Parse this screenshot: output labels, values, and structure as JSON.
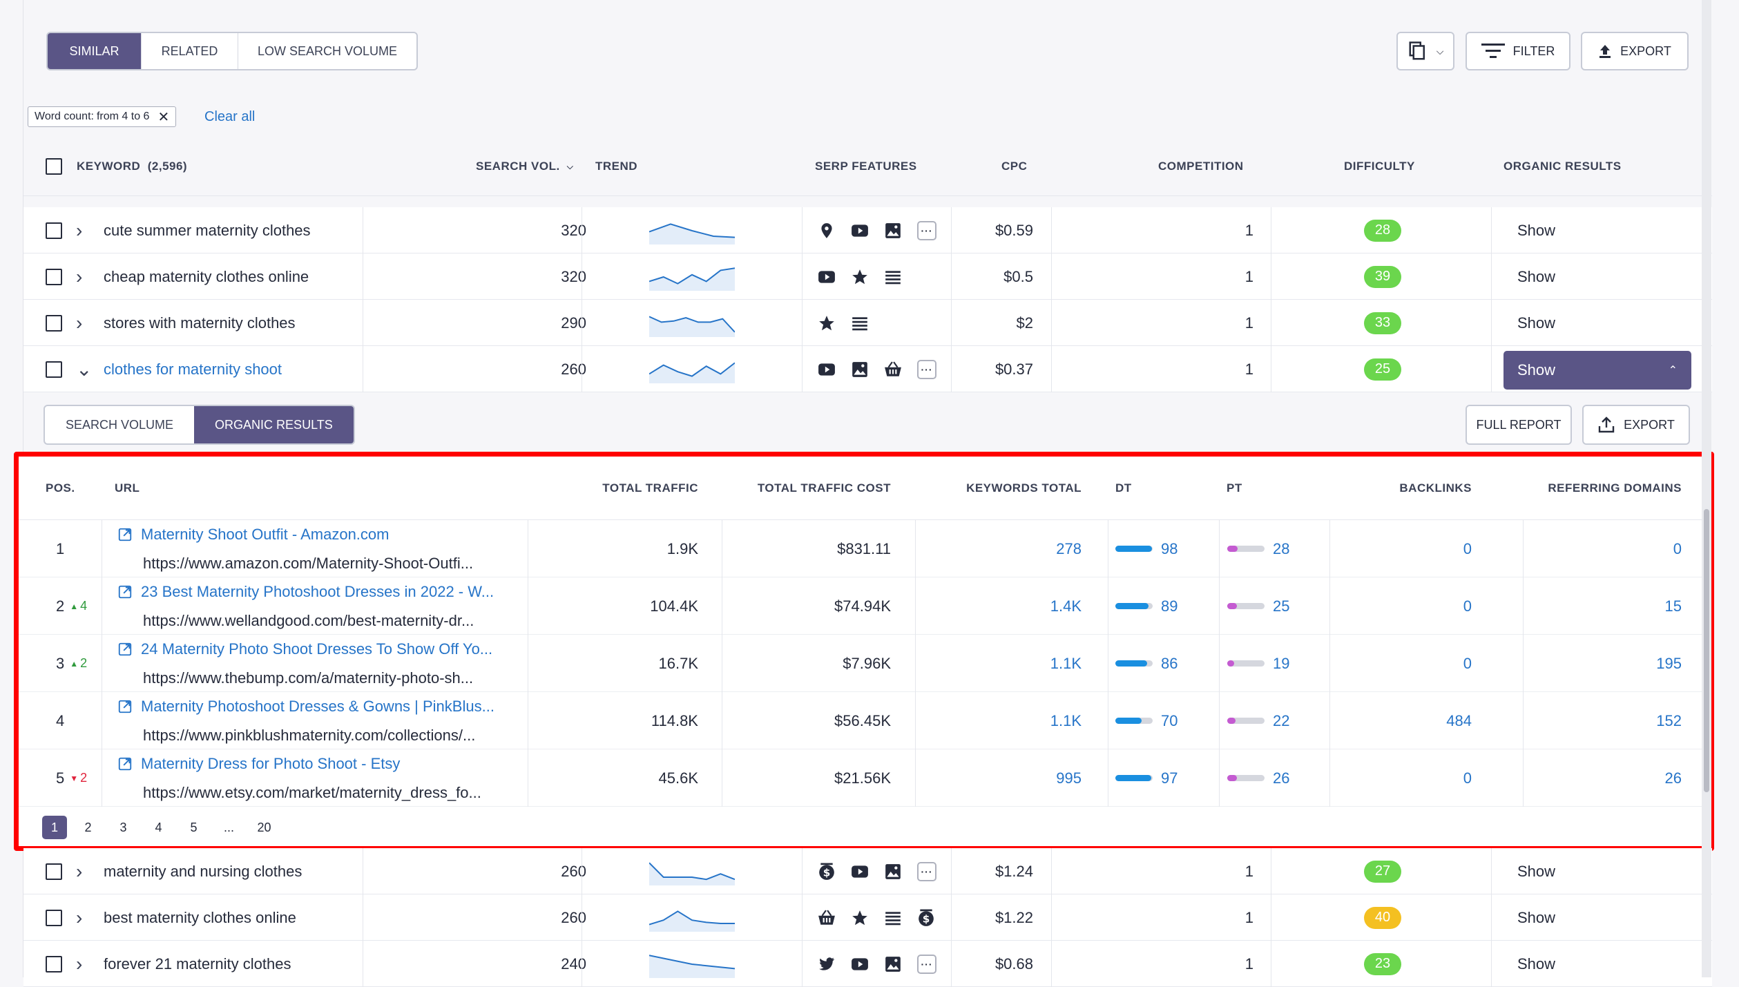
{
  "tabs": {
    "similar": "SIMILAR",
    "related": "RELATED",
    "low_volume": "LOW SEARCH VOLUME"
  },
  "toolbar": {
    "filter": "FILTER",
    "export": "EXPORT"
  },
  "filter_chip": {
    "label": "Word count:",
    "value": "from 4 to 6"
  },
  "clear_all": "Clear all",
  "columns": {
    "keyword": "KEYWORD",
    "keyword_count": "(2,596)",
    "search_vol": "SEARCH VOL.",
    "trend": "TREND",
    "serp": "SERP FEATURES",
    "cpc": "CPC",
    "competition": "COMPETITION",
    "difficulty": "DIFFICULTY",
    "organic": "ORGANIC RESULTS"
  },
  "rows_top": [
    {
      "keyword": "cute summer maternity clothes",
      "volume": "320",
      "cpc": "$0.59",
      "competition": "1",
      "difficulty": "28",
      "difficulty_color": "#6bd64d",
      "action": "Show",
      "serp": [
        "location-icon",
        "youtube-icon",
        "image-icon",
        "more-icon"
      ],
      "trend": [
        0.55,
        0.2,
        0.5,
        0.75,
        0.8
      ]
    },
    {
      "keyword": "cheap maternity clothes online",
      "volume": "320",
      "cpc": "$0.5",
      "competition": "1",
      "difficulty": "39",
      "difficulty_color": "#6bd64d",
      "action": "Show",
      "serp": [
        "youtube-icon",
        "star-icon",
        "list-icon"
      ],
      "trend": [
        0.7,
        0.5,
        0.8,
        0.4,
        0.7,
        0.2,
        0.1
      ]
    },
    {
      "keyword": "stores with maternity clothes",
      "volume": "290",
      "cpc": "$2",
      "competition": "1",
      "difficulty": "33",
      "difficulty_color": "#6bd64d",
      "action": "Show",
      "serp": [
        "star-icon",
        "list-icon"
      ],
      "trend": [
        0.2,
        0.45,
        0.4,
        0.25,
        0.45,
        0.45,
        0.3,
        0.9
      ]
    },
    {
      "keyword": "clothes for maternity shoot",
      "volume": "260",
      "cpc": "$0.37",
      "competition": "1",
      "difficulty": "25",
      "difficulty_color": "#6bd64d",
      "action": "Show",
      "serp": [
        "youtube-icon",
        "image-icon",
        "basket-icon",
        "more-icon"
      ],
      "trend": [
        0.7,
        0.3,
        0.6,
        0.8,
        0.35,
        0.7,
        0.2
      ],
      "expanded": true
    }
  ],
  "subtabs": {
    "search_volume": "SEARCH VOLUME",
    "organic_results": "ORGANIC RESULTS",
    "full_report": "FULL REPORT",
    "export": "EXPORT"
  },
  "organic_columns": {
    "pos": "POS.",
    "url": "URL",
    "total_traffic": "TOTAL TRAFFIC",
    "traffic_cost": "TOTAL TRAFFIC COST",
    "keywords_total": "KEYWORDS TOTAL",
    "dt": "DT",
    "pt": "PT",
    "backlinks": "BACKLINKS",
    "referring": "REFERRING DOMAINS"
  },
  "organic_rows": [
    {
      "pos": "1",
      "change": "",
      "change_dir": "",
      "title": "Maternity Shoot Outfit - Amazon.com",
      "url": "https://www.amazon.com/Maternity-Shoot-Outfi...",
      "traffic": "1.9K",
      "cost": "$831.11",
      "keywords": "278",
      "dt": "98",
      "dt_level": 0.98,
      "pt": "28",
      "pt_level": 0.28,
      "backlinks": "0",
      "referring": "0"
    },
    {
      "pos": "2",
      "change": "4",
      "change_dir": "up",
      "title": "23 Best Maternity Photoshoot Dresses in 2022 - W...",
      "url": "https://www.wellandgood.com/best-maternity-dr...",
      "traffic": "104.4K",
      "cost": "$74.94K",
      "keywords": "1.4K",
      "dt": "89",
      "dt_level": 0.89,
      "pt": "25",
      "pt_level": 0.25,
      "backlinks": "0",
      "referring": "15"
    },
    {
      "pos": "3",
      "change": "2",
      "change_dir": "up",
      "title": "24 Maternity Photo Shoot Dresses To Show Off Yo...",
      "url": "https://www.thebump.com/a/maternity-photo-sh...",
      "traffic": "16.7K",
      "cost": "$7.96K",
      "keywords": "1.1K",
      "dt": "86",
      "dt_level": 0.86,
      "pt": "19",
      "pt_level": 0.19,
      "backlinks": "0",
      "referring": "195"
    },
    {
      "pos": "4",
      "change": "",
      "change_dir": "",
      "title": "Maternity Photoshoot Dresses & Gowns | PinkBlus...",
      "url": "https://www.pinkblushmaternity.com/collections/...",
      "traffic": "114.8K",
      "cost": "$56.45K",
      "keywords": "1.1K",
      "dt": "70",
      "dt_level": 0.7,
      "pt": "22",
      "pt_level": 0.22,
      "backlinks": "484",
      "referring": "152"
    },
    {
      "pos": "5",
      "change": "2",
      "change_dir": "down",
      "title": "Maternity Dress for Photo Shoot - Etsy",
      "url": "https://www.etsy.com/market/maternity_dress_fo...",
      "traffic": "45.6K",
      "cost": "$21.56K",
      "keywords": "995",
      "dt": "97",
      "dt_level": 0.97,
      "pt": "26",
      "pt_level": 0.26,
      "backlinks": "0",
      "referring": "26"
    }
  ],
  "pagination": [
    "1",
    "2",
    "3",
    "4",
    "5",
    "...",
    "20"
  ],
  "rows_bottom": [
    {
      "keyword": "maternity and nursing clothes",
      "volume": "260",
      "cpc": "$1.24",
      "competition": "1",
      "difficulty": "27",
      "difficulty_color": "#6bd64d",
      "action": "Show",
      "serp": [
        "dollar-icon",
        "youtube-icon",
        "image-icon",
        "more-icon"
      ],
      "trend": [
        0.1,
        0.75,
        0.75,
        0.75,
        0.85,
        0.6,
        0.85
      ]
    },
    {
      "keyword": "best maternity clothes online",
      "volume": "260",
      "cpc": "$1.22",
      "competition": "1",
      "difficulty": "40",
      "difficulty_color": "#f4c021",
      "action": "Show",
      "serp": [
        "basket-icon",
        "star-icon",
        "list-icon",
        "dollar-icon"
      ],
      "trend": [
        0.8,
        0.6,
        0.2,
        0.6,
        0.7,
        0.75,
        0.75
      ]
    },
    {
      "keyword": "forever 21 maternity clothes",
      "volume": "240",
      "cpc": "$0.68",
      "competition": "1",
      "difficulty": "23",
      "difficulty_color": "#6bd64d",
      "action": "Show",
      "serp": [
        "twitter-icon",
        "youtube-icon",
        "image-icon",
        "more-icon"
      ],
      "trend": [
        0.1,
        0.3,
        0.5,
        0.6,
        0.7
      ]
    }
  ]
}
